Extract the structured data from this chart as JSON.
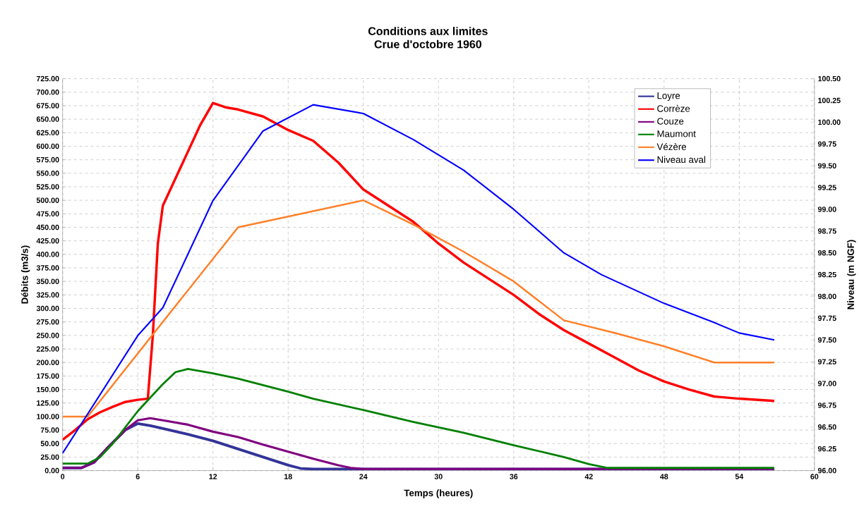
{
  "chart_data": {
    "type": "line",
    "title": "Conditions aux limites\nCrue d'octobre 1960",
    "xlabel": "Temps (heures)",
    "ylabel": "Débits (m3/s)",
    "y2label": "Niveau (m NGF)",
    "xlim": [
      0,
      60
    ],
    "xticks": [
      0,
      6,
      12,
      18,
      24,
      30,
      36,
      42,
      48,
      54,
      60
    ],
    "ylim": [
      0,
      725
    ],
    "yticks": [
      {
        "value": 0,
        "label": "0.00"
      },
      {
        "value": 25,
        "label": "25.00"
      },
      {
        "value": 50,
        "label": "50.00"
      },
      {
        "value": 75,
        "label": "75.00"
      },
      {
        "value": 100,
        "label": "100.00"
      },
      {
        "value": 125,
        "label": "125.00"
      },
      {
        "value": 150,
        "label": "150.00"
      },
      {
        "value": 175,
        "label": "175.00"
      },
      {
        "value": 200,
        "label": "200.00"
      },
      {
        "value": 225,
        "label": "225.00"
      },
      {
        "value": 250,
        "label": "250.00"
      },
      {
        "value": 275,
        "label": "275.00"
      },
      {
        "value": 300,
        "label": "300.00"
      },
      {
        "value": 325,
        "label": "325.00"
      },
      {
        "value": 350,
        "label": "350.00"
      },
      {
        "value": 375,
        "label": "375.00"
      },
      {
        "value": 400,
        "label": "400.00"
      },
      {
        "value": 425,
        "label": "425.00"
      },
      {
        "value": 450,
        "label": "450.00"
      },
      {
        "value": 475,
        "label": "475.00"
      },
      {
        "value": 500,
        "label": "500.00"
      },
      {
        "value": 525,
        "label": "525.00"
      },
      {
        "value": 550,
        "label": "550.00"
      },
      {
        "value": 575,
        "label": "575.00"
      },
      {
        "value": 600,
        "label": "600.00"
      },
      {
        "value": 625,
        "label": "625.00"
      },
      {
        "value": 650,
        "label": "650.00"
      },
      {
        "value": 675,
        "label": "675.00"
      },
      {
        "value": 700,
        "label": "700.00"
      },
      {
        "value": 725,
        "label": "725.00"
      }
    ],
    "y2lim": [
      96,
      100.5
    ],
    "y2ticks": [
      {
        "value": 96,
        "label": "96.00"
      },
      {
        "value": 96.25,
        "label": "96.25"
      },
      {
        "value": 96.5,
        "label": "96.50"
      },
      {
        "value": 96.75,
        "label": "96.75"
      },
      {
        "value": 97,
        "label": "97.00"
      },
      {
        "value": 97.25,
        "label": "97.25"
      },
      {
        "value": 97.5,
        "label": "97.50"
      },
      {
        "value": 97.75,
        "label": "97.75"
      },
      {
        "value": 98,
        "label": "98.00"
      },
      {
        "value": 98.25,
        "label": "98.25"
      },
      {
        "value": 98.5,
        "label": "98.50"
      },
      {
        "value": 98.75,
        "label": "98.75"
      },
      {
        "value": 99,
        "label": "99.00"
      },
      {
        "value": 99.25,
        "label": "99.25"
      },
      {
        "value": 99.5,
        "label": "99.50"
      },
      {
        "value": 99.75,
        "label": "99.75"
      },
      {
        "value": 100,
        "label": "100.00"
      },
      {
        "value": 100.25,
        "label": "100.25"
      },
      {
        "value": 100.5,
        "label": "100.50"
      }
    ],
    "grid": true,
    "legend": "top right",
    "marker": "none",
    "line_style": "solid",
    "series": [
      {
        "name": "Loyre",
        "color": "#333399",
        "x": [
          0,
          1.5,
          2.5,
          3.5,
          5,
          6,
          7,
          8,
          10,
          12,
          14,
          16,
          18,
          19,
          20,
          56.8
        ],
        "values": [
          5,
          5,
          15,
          40,
          75,
          87,
          83,
          78,
          67,
          55,
          40,
          25,
          10,
          4,
          3,
          3
        ]
      },
      {
        "name": "Corrèze",
        "color": "#ff0000",
        "x": [
          0,
          1,
          2,
          3,
          4,
          5,
          6,
          6.8,
          7.2,
          7.6,
          8,
          9,
          10,
          11,
          12,
          13,
          14,
          16,
          18,
          20,
          22,
          24,
          26,
          28,
          30,
          32,
          34,
          36,
          38,
          40,
          42,
          44,
          46,
          48,
          50,
          52,
          54,
          56.8
        ],
        "values": [
          57,
          75,
          95,
          108,
          118,
          127,
          131,
          133,
          250,
          420,
          490,
          540,
          590,
          640,
          680,
          672,
          668,
          655,
          630,
          610,
          570,
          520,
          490,
          460,
          420,
          385,
          355,
          325,
          290,
          260,
          235,
          210,
          185,
          165,
          150,
          137,
          133,
          129
        ]
      },
      {
        "name": "Couze",
        "color": "#800080",
        "x": [
          0,
          1.5,
          2.5,
          3.5,
          5,
          6,
          7,
          8,
          10,
          12,
          14,
          16,
          18,
          20,
          22,
          23,
          24,
          56.8
        ],
        "values": [
          5,
          5,
          15,
          40,
          75,
          93,
          97,
          93,
          85,
          72,
          62,
          48,
          35,
          22,
          10,
          5,
          3,
          3
        ]
      },
      {
        "name": "Maumont",
        "color": "#008000",
        "x": [
          0,
          2,
          3,
          4,
          5,
          6,
          7,
          8,
          9,
          10,
          12,
          14,
          16,
          18,
          20,
          24,
          28,
          32,
          36,
          40,
          42,
          43.5,
          56.8
        ],
        "values": [
          13,
          13,
          25,
          50,
          80,
          110,
          135,
          160,
          182,
          188,
          180,
          170,
          158,
          146,
          133,
          112,
          90,
          70,
          47,
          25,
          12,
          5,
          5
        ]
      },
      {
        "name": "Vézère",
        "color": "#ff7f27",
        "x": [
          0,
          2,
          14,
          24,
          28,
          32,
          36,
          40,
          44,
          48,
          52,
          56.8
        ],
        "values": [
          100,
          100,
          450,
          500,
          455,
          405,
          350,
          278,
          255,
          230,
          200,
          200
        ]
      },
      {
        "name": "Niveau aval",
        "color": "#0000ff",
        "axis": "y2",
        "x": [
          0,
          6,
          8,
          12,
          16,
          20,
          24,
          28,
          32,
          36,
          40,
          43,
          48,
          52,
          54,
          56.8
        ],
        "values": [
          96.2,
          97.55,
          97.87,
          99.1,
          99.9,
          100.2,
          100.1,
          99.8,
          99.45,
          99.0,
          98.5,
          98.25,
          97.92,
          97.7,
          97.58,
          97.5
        ]
      }
    ]
  }
}
